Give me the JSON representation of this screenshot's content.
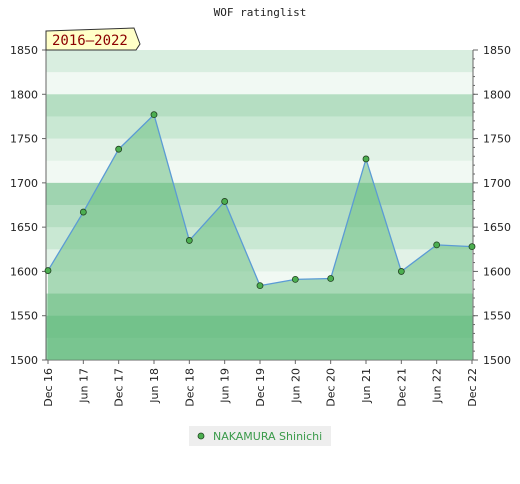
{
  "chart_data": {
    "type": "line",
    "title": "WOF ratinglist",
    "period": "2016–2022",
    "categories": [
      "Dec 16",
      "Jun 17",
      "Dec 17",
      "Jun 18",
      "Dec 18",
      "Jun 19",
      "Dec 19",
      "Jun 20",
      "Dec 20",
      "Jun 21",
      "Dec 21",
      "Jun 22",
      "Dec 22"
    ],
    "series": [
      {
        "name": "NAKAMURA Shinichi",
        "color": "#5b9bd5",
        "fill": "#6cc083",
        "marker": "#4caf50",
        "values": [
          1601,
          1667,
          1738,
          1777,
          1635,
          1679,
          1584,
          1591,
          1592,
          1727,
          1600,
          1630,
          1628
        ]
      }
    ],
    "ylim": [
      1500,
      1850
    ],
    "yticks": [
      1500,
      1550,
      1600,
      1650,
      1700,
      1750,
      1800,
      1850
    ]
  }
}
